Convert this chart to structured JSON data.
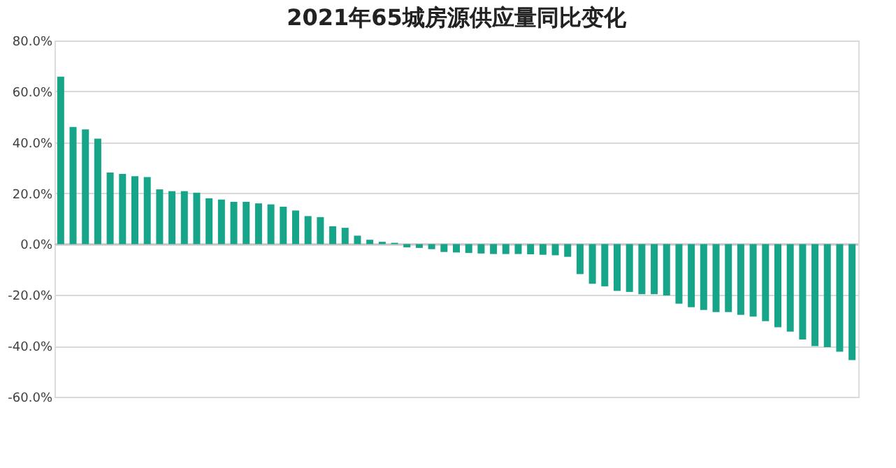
{
  "chart_data": {
    "type": "bar",
    "title": "2021年65城房源供应量同比变化",
    "categories": [
      null,
      null,
      null,
      null,
      null,
      null,
      null,
      null,
      null,
      null,
      null,
      null,
      null,
      null,
      null,
      null,
      null,
      null,
      null,
      null,
      null,
      null,
      null,
      null,
      null,
      null,
      null,
      null,
      null,
      null,
      null,
      null,
      null,
      null,
      null,
      null,
      null,
      null,
      null,
      null,
      null,
      null,
      null,
      null,
      null,
      null,
      null,
      null,
      null,
      null,
      null,
      null,
      null,
      null,
      null,
      null,
      null,
      null,
      null,
      null,
      null,
      null,
      null,
      null,
      null
    ],
    "values": [
      65.8,
      46.0,
      45.1,
      41.4,
      28.1,
      27.6,
      26.7,
      26.3,
      21.5,
      20.8,
      20.8,
      20.2,
      18.0,
      17.5,
      16.6,
      16.6,
      16.0,
      15.6,
      14.7,
      13.2,
      11.0,
      10.6,
      7.0,
      6.4,
      3.3,
      1.7,
      0.9,
      0.5,
      -1.3,
      -1.5,
      -2.0,
      -3.1,
      -3.3,
      -3.5,
      -3.7,
      -3.9,
      -3.9,
      -3.9,
      -4.0,
      -4.2,
      -4.4,
      -5.0,
      -11.8,
      -15.6,
      -16.6,
      -18.4,
      -18.8,
      -19.7,
      -19.7,
      -20.2,
      -23.4,
      -24.8,
      -25.9,
      -26.7,
      -26.7,
      -27.8,
      -28.5,
      -30.3,
      -32.7,
      -34.4,
      -37.5,
      -40.1,
      -40.5,
      -42.3,
      -45.6
    ],
    "color": "#17a589",
    "ylim": [
      -60,
      80
    ],
    "yticks": [
      {
        "value": -60,
        "label": "-60.0%"
      },
      {
        "value": -40,
        "label": "-40.0%"
      },
      {
        "value": -20,
        "label": "-20.0%"
      },
      {
        "value": 0,
        "label": "0.0%"
      },
      {
        "value": 20,
        "label": "20.0%"
      },
      {
        "value": 40,
        "label": "40.0%"
      },
      {
        "value": 60,
        "label": "60.0%"
      },
      {
        "value": 80,
        "label": "80.0%"
      }
    ],
    "grid": "y",
    "tick_labels": "y"
  }
}
